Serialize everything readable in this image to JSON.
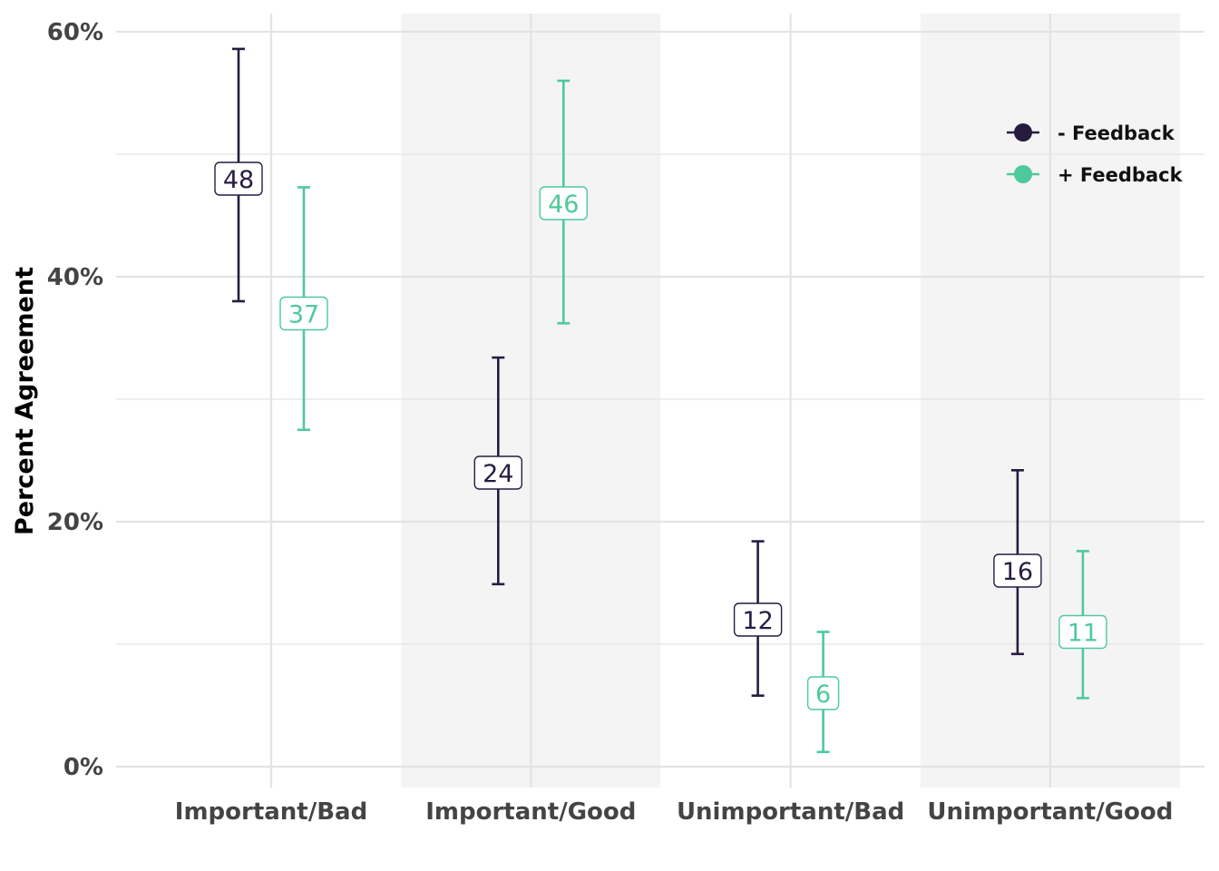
{
  "chart_data": {
    "type": "errorbar",
    "ylabel": "Percent Agreement",
    "ylim": [
      0,
      60
    ],
    "ytick_values": [
      0,
      20,
      40,
      60
    ],
    "ytick_labels": [
      "0%",
      "20%",
      "40%",
      "60%"
    ],
    "categories": [
      "Important/Bad",
      "Important/Good",
      "Unimportant/Bad",
      "Unimportant/Good"
    ],
    "shaded_categories": [
      1,
      3
    ],
    "grid": true,
    "legend_position": "top-right",
    "series": [
      {
        "name": "- Feedback",
        "color": "#271c40",
        "values": [
          48,
          24,
          12,
          16
        ],
        "lower": [
          38.0,
          14.9,
          5.8,
          9.2
        ],
        "upper": [
          58.6,
          33.4,
          18.4,
          24.2
        ]
      },
      {
        "name": "+ Feedback",
        "color": "#4ec99b",
        "values": [
          37,
          46,
          6,
          11
        ],
        "lower": [
          27.5,
          36.2,
          1.2,
          5.6
        ],
        "upper": [
          47.3,
          56.0,
          11.0,
          17.6
        ]
      }
    ]
  }
}
